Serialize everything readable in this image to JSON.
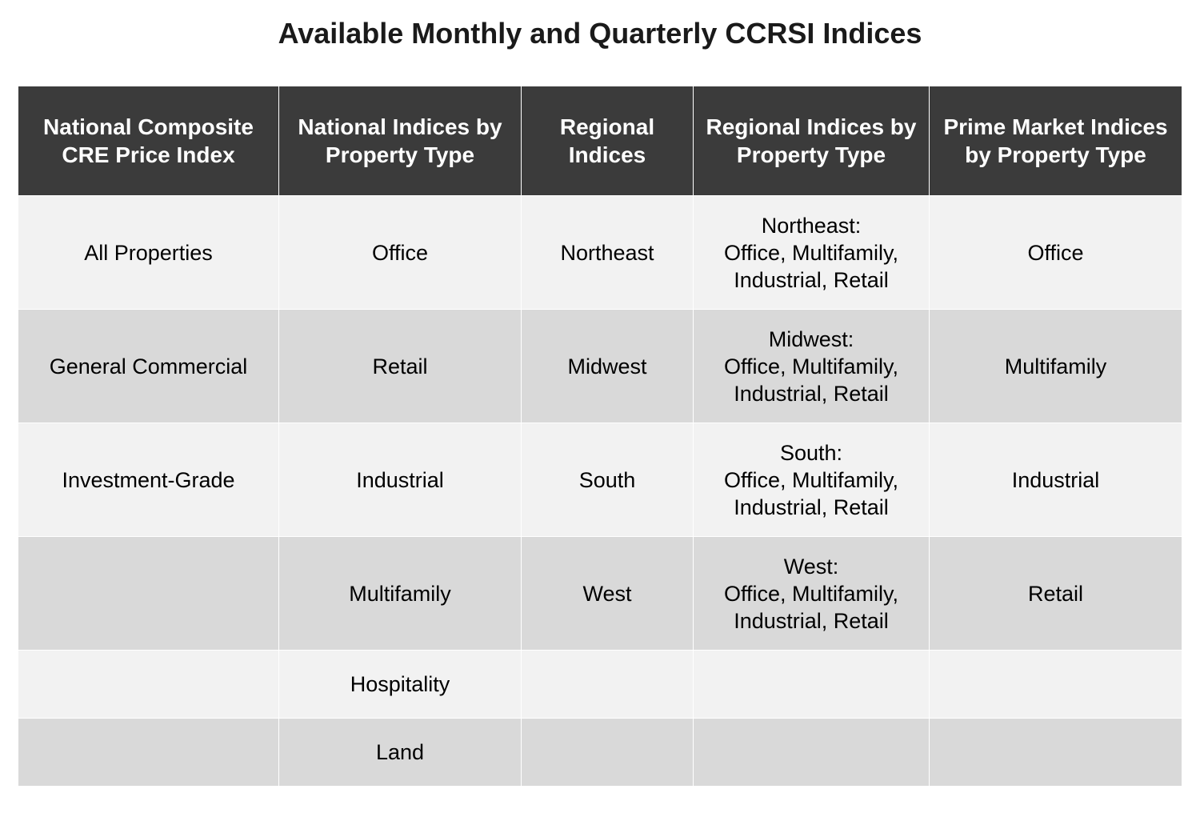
{
  "title": "Available Monthly and Quarterly CCRSI Indices",
  "colors": {
    "header_bg": "#3b3b3b",
    "header_text": "#ffffff",
    "row_light": "#f2f2f2",
    "row_dark": "#d9d9d9"
  },
  "table": {
    "headers": [
      "National Composite CRE Price Index",
      "National Indices by Property Type",
      "Regional Indices",
      "Regional Indices by Property Type",
      "Prime Market Indices by Property Type"
    ],
    "rows": [
      {
        "national_composite": "All Properties",
        "national_by_type": "Office",
        "regional": "Northeast",
        "regional_by_type_region": "Northeast:",
        "regional_by_type_line2": "Office, Multifamily,",
        "regional_by_type_line3": "Industrial, Retail",
        "prime_market": "Office"
      },
      {
        "national_composite": "General Commercial",
        "national_by_type": "Retail",
        "regional": "Midwest",
        "regional_by_type_region": "Midwest:",
        "regional_by_type_line2": "Office, Multifamily,",
        "regional_by_type_line3": "Industrial, Retail",
        "prime_market": "Multifamily"
      },
      {
        "national_composite": "Investment-Grade",
        "national_by_type": "Industrial",
        "regional": "South",
        "regional_by_type_region": "South:",
        "regional_by_type_line2": "Office, Multifamily,",
        "regional_by_type_line3": "Industrial, Retail",
        "prime_market": "Industrial"
      },
      {
        "national_composite": "",
        "national_by_type": "Multifamily",
        "regional": "West",
        "regional_by_type_region": "West:",
        "regional_by_type_line2": "Office, Multifamily,",
        "regional_by_type_line3": "Industrial, Retail",
        "prime_market": "Retail"
      },
      {
        "national_composite": "",
        "national_by_type": "Hospitality",
        "regional": "",
        "regional_by_type_region": "",
        "regional_by_type_line2": "",
        "regional_by_type_line3": "",
        "prime_market": ""
      },
      {
        "national_composite": "",
        "national_by_type": "Land",
        "regional": "",
        "regional_by_type_region": "",
        "regional_by_type_line2": "",
        "regional_by_type_line3": "",
        "prime_market": ""
      }
    ]
  }
}
